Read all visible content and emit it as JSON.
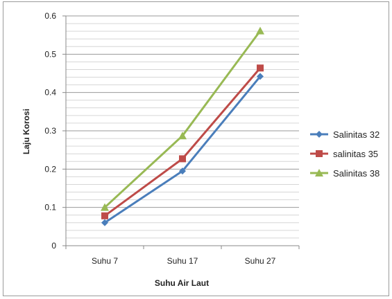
{
  "chart_data": {
    "type": "line",
    "categories": [
      "Suhu 7",
      "Suhu 17",
      "Suhu 27"
    ],
    "series": [
      {
        "name": "Salinitas 32",
        "values": [
          0.06,
          0.195,
          0.442
        ],
        "color": "#4a7ebb",
        "marker": "diamond"
      },
      {
        "name": "salinitas 35",
        "values": [
          0.078,
          0.227,
          0.464
        ],
        "color": "#be4b48",
        "marker": "square"
      },
      {
        "name": "Salinitas 38",
        "values": [
          0.1,
          0.287,
          0.561
        ],
        "color": "#98b954",
        "marker": "triangle"
      }
    ],
    "xlabel": "Suhu Air Laut",
    "ylabel": "Laju Korosi",
    "ylim": [
      0,
      0.6
    ],
    "yticks": [
      "0",
      "0.1",
      "0.2",
      "0.3",
      "0.4",
      "0.5",
      "0.6"
    ],
    "grid": true,
    "legend_position": "right"
  }
}
